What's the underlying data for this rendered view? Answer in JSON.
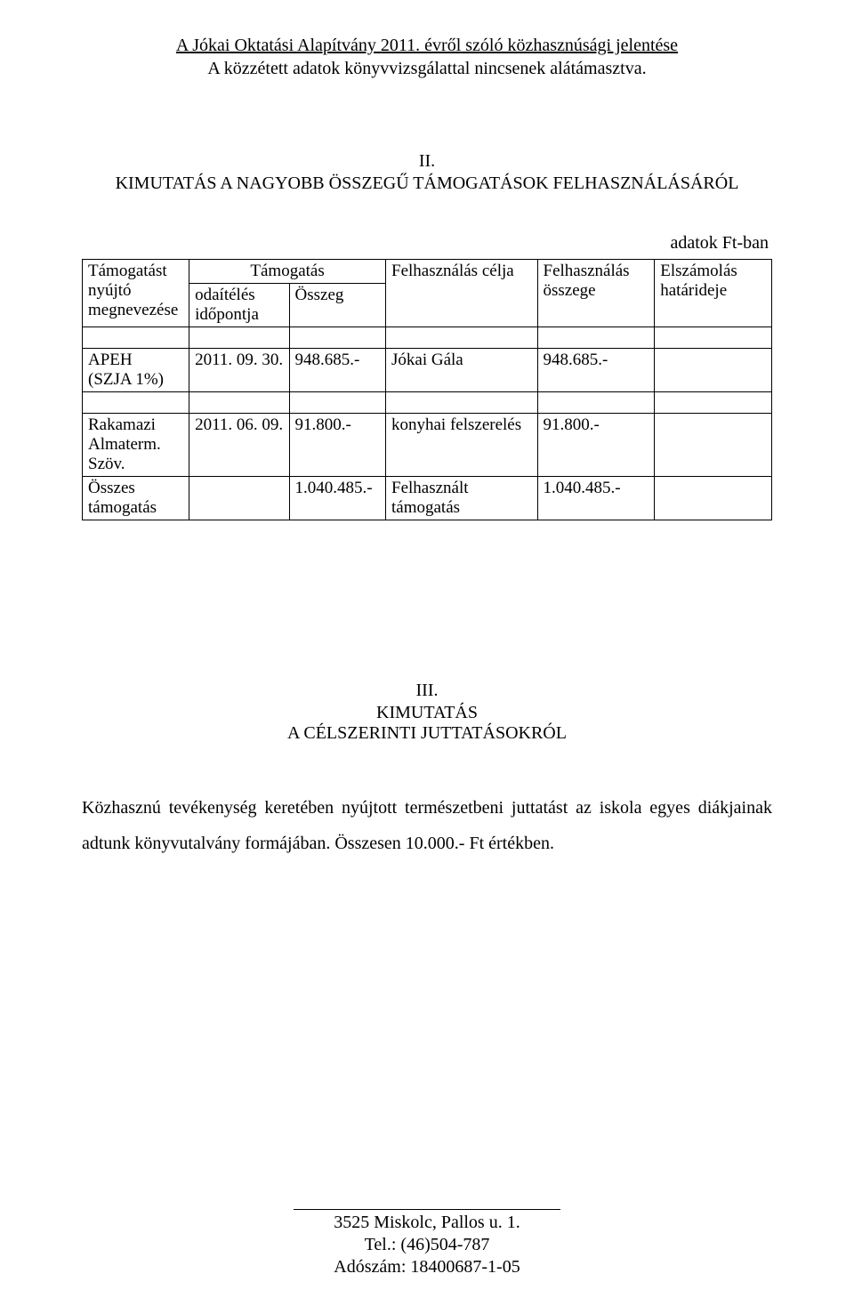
{
  "header": {
    "line1": "A Jókai Oktatási Alapítvány 2011. évről szóló közhasznúsági jelentése",
    "line2": "A közzétett adatok könyvvizsgálattal nincsenek alátámasztva."
  },
  "section2": {
    "num": "II.",
    "title": "KIMUTATÁS A NAGYOBB ÖSSZEGŰ TÁMOGATÁSOK FELHASZNÁLÁSÁRÓL",
    "unit_note": "adatok Ft-ban",
    "header_cells": {
      "c0": "Támogatást nyújtó megnevezése",
      "c1_top": "Támogatás",
      "c1a": "odaítélés időpontja",
      "c1b": "Összeg",
      "c3": "Felhasználás célja",
      "c4": "Felhasználás összege",
      "c5": "Elszámolás határideje"
    },
    "rows": [
      {
        "c0": "APEH\n(SZJA 1%)",
        "c1": "2011. 09. 30.",
        "c2": "948.685.-",
        "c3": "Jókai Gála",
        "c4": "948.685.-",
        "c5": ""
      },
      {
        "c0": "Rakamazi Almaterm. Szöv.",
        "c1": "2011. 06. 09.",
        "c2": "91.800.-",
        "c3": "konyhai felszerelés",
        "c4": "91.800.-",
        "c5": ""
      }
    ],
    "total_row": {
      "c0": "Összes támogatás",
      "c1": "",
      "c2": "1.040.485.-",
      "c3": "Felhasznált támogatás",
      "c4": "1.040.485.-",
      "c5": ""
    }
  },
  "section3": {
    "num": "III.",
    "title_line1": "KIMUTATÁS",
    "title_line2": "A CÉLSZERINTI JUTTATÁSOKRÓL",
    "body": "Közhasznú tevékenység keretében nyújtott természetbeni juttatást az iskola egyes diákjainak adtunk könyvutalvány formájában. Összesen 10.000.- Ft értékben."
  },
  "footer": {
    "line1": "3525 Miskolc, Pallos u. 1.",
    "line2": "Tel.: (46)504-787",
    "line3": "Adószám: 18400687-1-05"
  }
}
